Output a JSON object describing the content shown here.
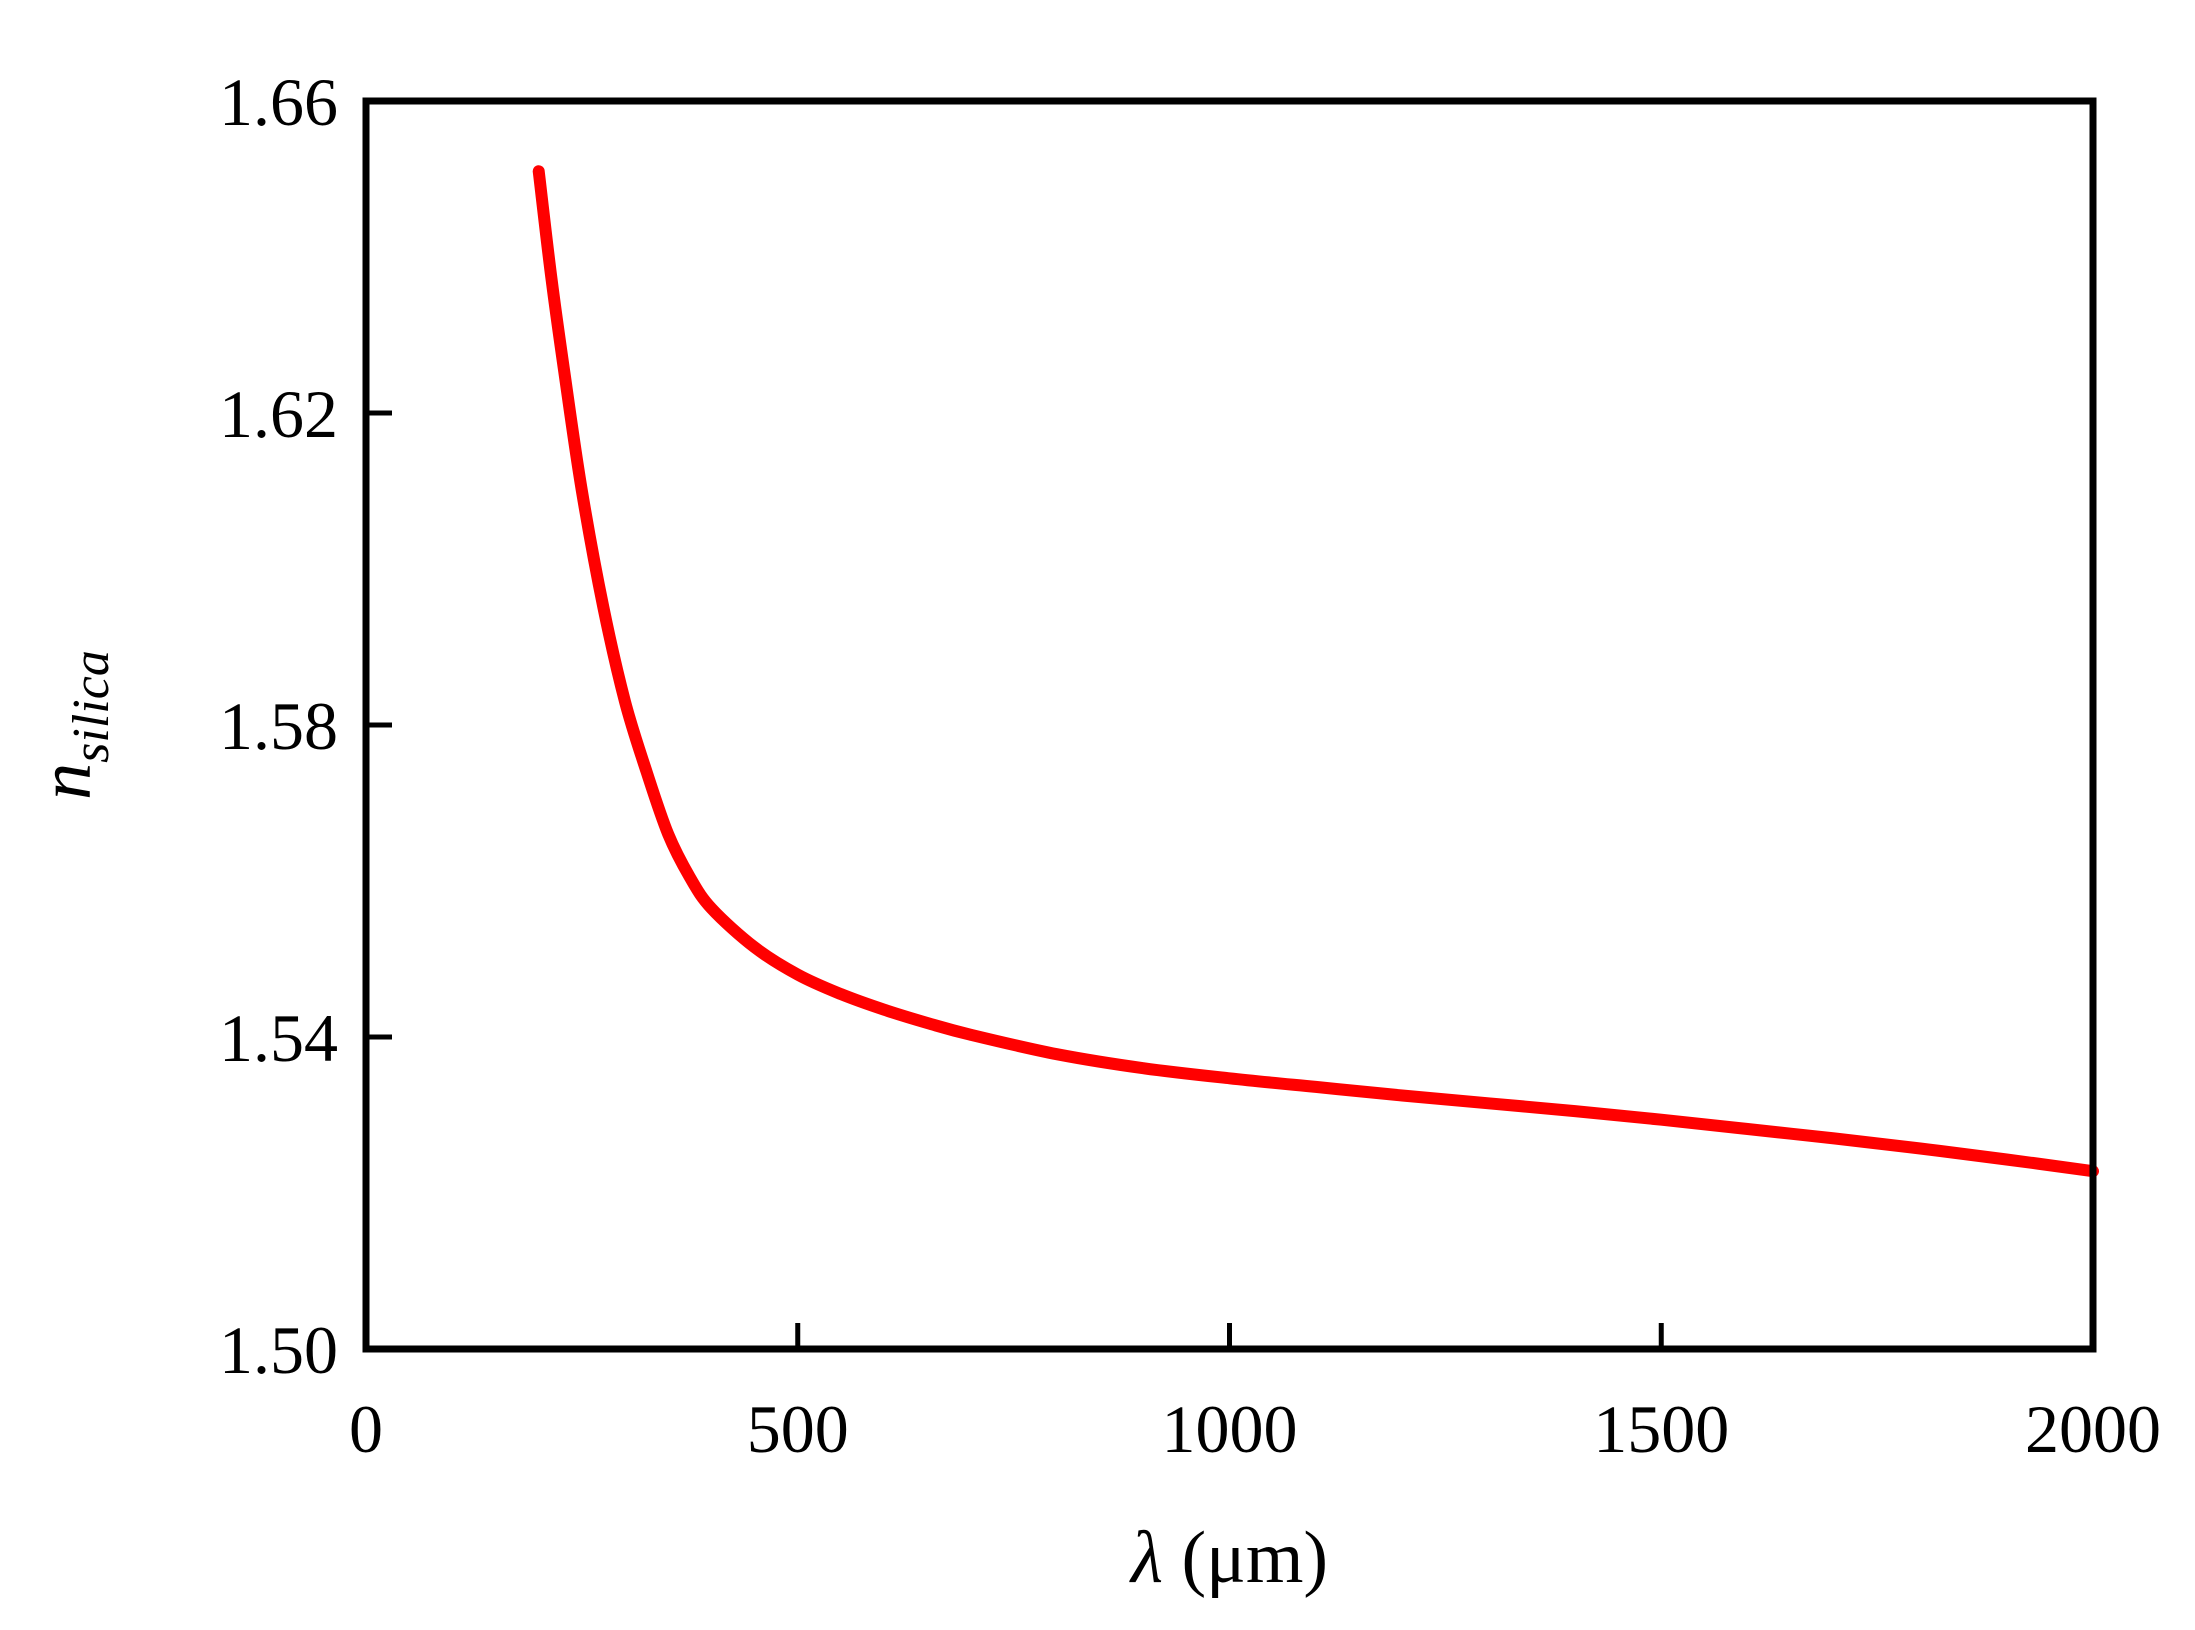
{
  "chart_data": {
    "type": "line",
    "xlabel_symbol": "λ",
    "xlabel_unit": " (μm)",
    "ylabel_main": "n",
    "ylabel_sub": "silica",
    "xlim": [
      0,
      2000
    ],
    "ylim": [
      1.5,
      1.66
    ],
    "xticks": [
      "0",
      "500",
      "1000",
      "1500",
      "2000"
    ],
    "yticks": [
      "1.50",
      "1.54",
      "1.58",
      "1.62",
      "1.66"
    ],
    "grid": false,
    "legend": "none",
    "series": [
      {
        "color": "#ff0000",
        "x": [
          200,
          215,
          230,
          250,
          275,
          300,
          325,
          350,
          375,
          400,
          450,
          500,
          550,
          600,
          650,
          700,
          800,
          900,
          1000,
          1100,
          1200,
          1300,
          1400,
          1500,
          1600,
          1700,
          1800,
          1900,
          2000
        ],
        "y": [
          1.651,
          1.637,
          1.625,
          1.61,
          1.595,
          1.583,
          1.574,
          1.566,
          1.5605,
          1.5565,
          1.5515,
          1.548,
          1.5455,
          1.5435,
          1.5418,
          1.5403,
          1.5378,
          1.536,
          1.5347,
          1.5336,
          1.5325,
          1.5315,
          1.5305,
          1.5294,
          1.5282,
          1.527,
          1.5257,
          1.5243,
          1.5228
        ]
      }
    ]
  }
}
